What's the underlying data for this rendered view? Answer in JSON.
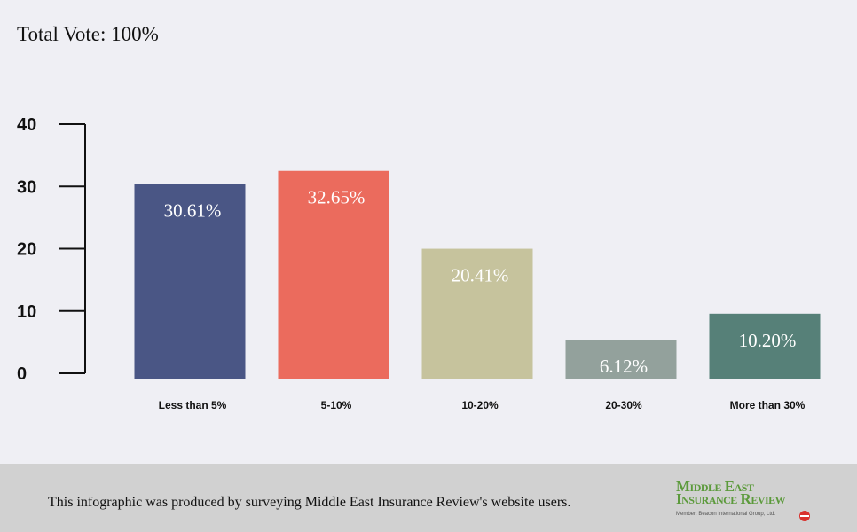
{
  "header": {
    "title": "Total Vote: 100%"
  },
  "chart_data": {
    "type": "bar",
    "categories": [
      "Less than 5%",
      "5-10%",
      "10-20%",
      "20-30%",
      "More than 30%"
    ],
    "values": [
      30.61,
      32.65,
      20.41,
      6.12,
      10.2
    ],
    "value_labels": [
      "30.61%",
      "32.65%",
      "20.41%",
      "6.12%",
      "10.20%"
    ],
    "colors": [
      "#4a5685",
      "#eb6b5d",
      "#c6c39d",
      "#93a19c",
      "#568078"
    ],
    "yticks": [
      0,
      10,
      20,
      30,
      40
    ],
    "ylim": [
      0,
      40
    ],
    "title": "",
    "xlabel": "",
    "ylabel": "",
    "grid": false,
    "legend": "none"
  },
  "footer": {
    "note": "This infographic was produced by surveying Middle East Insurance Review's website users."
  },
  "logo": {
    "line1": "Middle East",
    "line2": "Insurance Review",
    "sub": "Member: Beacon International Group, Ltd.",
    "mark_color": "#d9322e"
  }
}
